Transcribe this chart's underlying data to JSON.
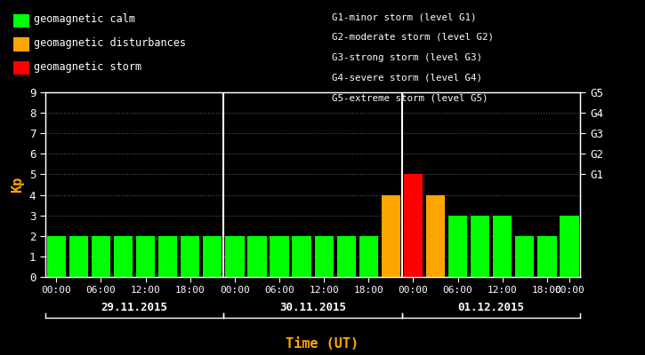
{
  "bg_color": "#000000",
  "plot_bg_color": "#000000",
  "bar_values": [
    2,
    2,
    2,
    2,
    2,
    2,
    2,
    2,
    2,
    2,
    2,
    2,
    2,
    2,
    2,
    4,
    5,
    4,
    3,
    3,
    3,
    2,
    2,
    3
  ],
  "bar_colors": [
    "#00ff00",
    "#00ff00",
    "#00ff00",
    "#00ff00",
    "#00ff00",
    "#00ff00",
    "#00ff00",
    "#00ff00",
    "#00ff00",
    "#00ff00",
    "#00ff00",
    "#00ff00",
    "#00ff00",
    "#00ff00",
    "#00ff00",
    "#ffa500",
    "#ff0000",
    "#ffa500",
    "#00ff00",
    "#00ff00",
    "#00ff00",
    "#00ff00",
    "#00ff00",
    "#00ff00"
  ],
  "ylabel": "Kp",
  "ylabel_color": "#ffa500",
  "xlabel": "Time (UT)",
  "xlabel_color": "#ffa500",
  "ylim": [
    0,
    9
  ],
  "yticks": [
    0,
    1,
    2,
    3,
    4,
    5,
    6,
    7,
    8,
    9
  ],
  "tick_color": "#ffffff",
  "axis_color": "#ffffff",
  "grid_color": "#555555",
  "day_labels": [
    "29.11.2015",
    "30.11.2015",
    "01.12.2015"
  ],
  "day_label_color": "#ffffff",
  "legend_items": [
    {
      "label": "geomagnetic calm",
      "color": "#00ff00"
    },
    {
      "label": "geomagnetic disturbances",
      "color": "#ffa500"
    },
    {
      "label": "geomagnetic storm",
      "color": "#ff0000"
    }
  ],
  "legend_text_color": "#ffffff",
  "storm_legend_lines": [
    "G1-minor storm (level G1)",
    "G2-moderate storm (level G2)",
    "G3-strong storm (level G3)",
    "G4-severe storm (level G4)",
    "G5-extreme storm (level G5)"
  ],
  "storm_legend_color": "#ffffff",
  "vline_color": "#ffffff",
  "vline_positions": [
    8,
    16
  ],
  "n_bars": 24,
  "bar_width": 0.85,
  "right_yticks": [
    5,
    6,
    7,
    8,
    9
  ],
  "right_yticklabels": [
    "G1",
    "G2",
    "G3",
    "G4",
    "G5"
  ]
}
